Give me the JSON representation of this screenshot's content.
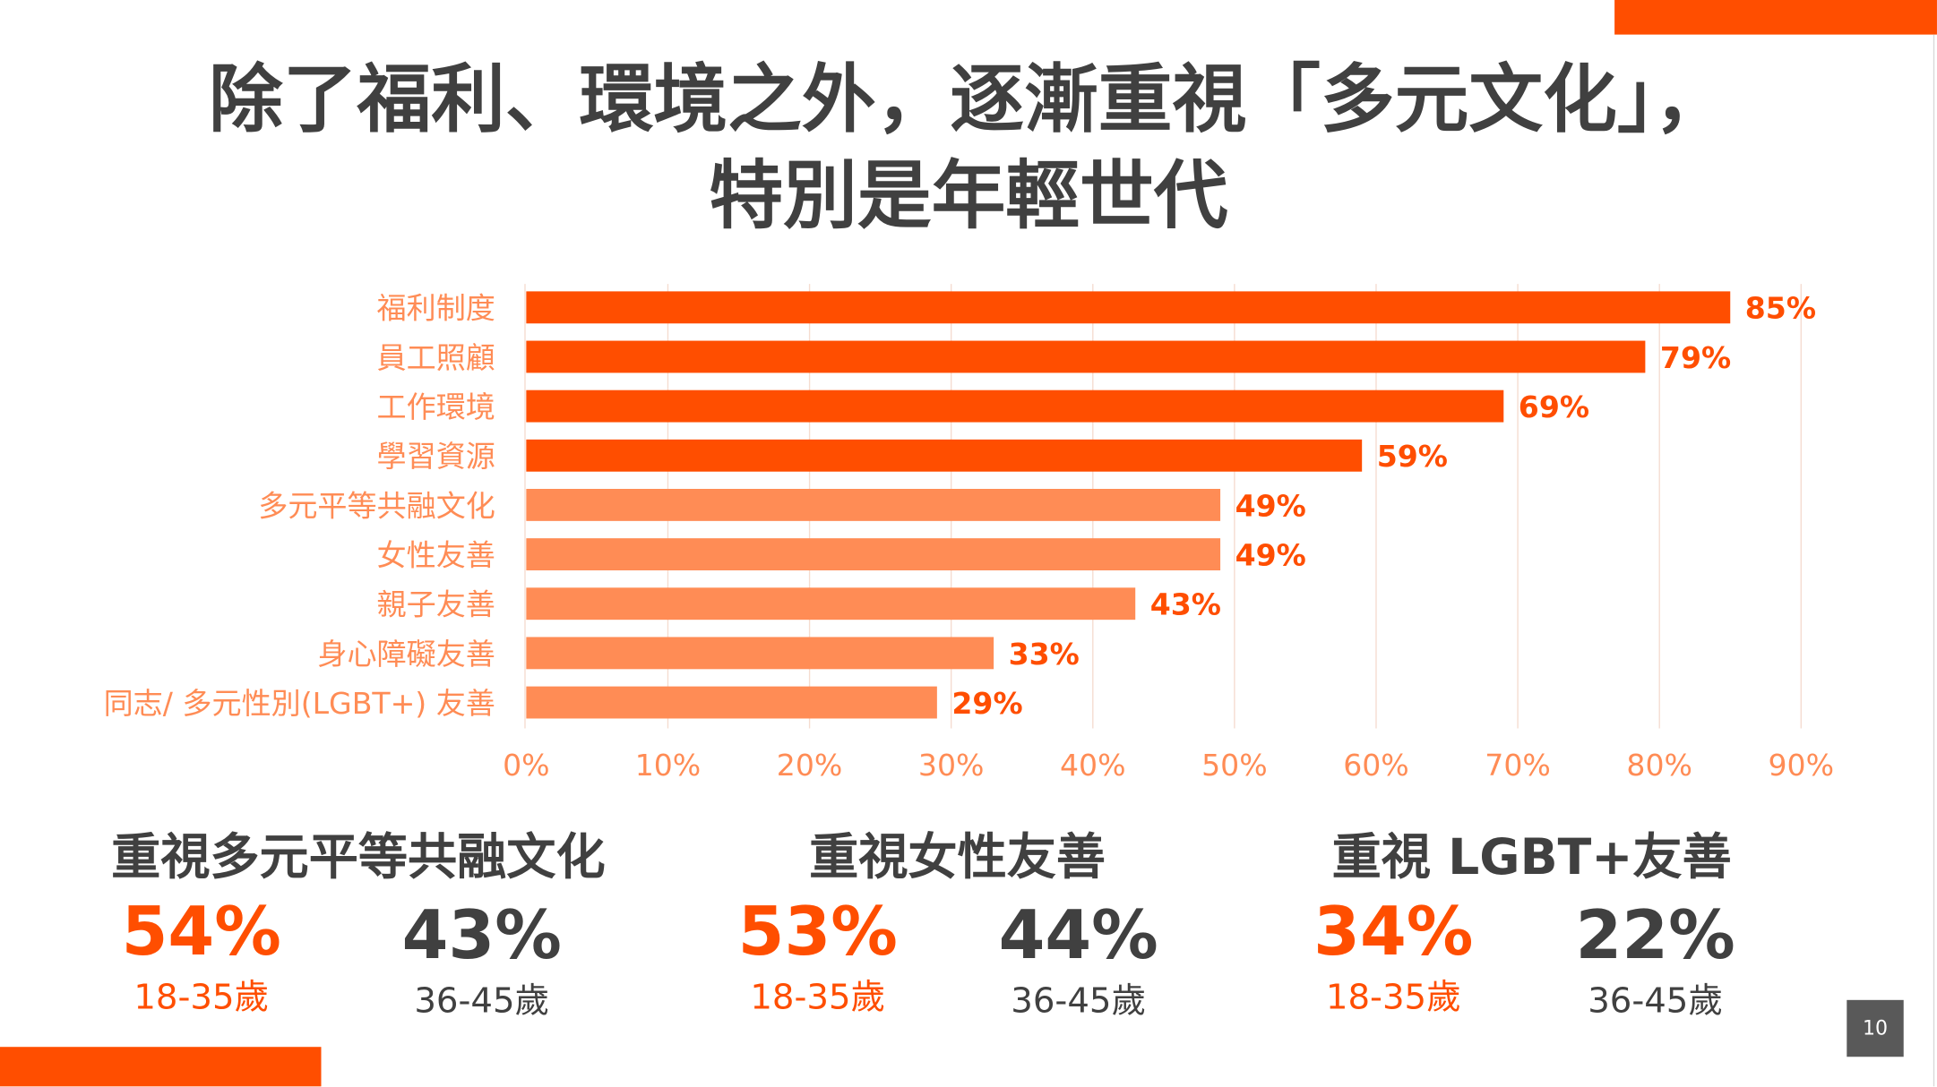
{
  "title_lines": [
    "除了福利、環境之外，逐漸重視「多元文化」，",
    "特別是年輕世代"
  ],
  "colors": {
    "primary": "#ff4e00",
    "secondary": "#ff8c55",
    "text": "#404040",
    "page_box": "#595959"
  },
  "chart_data": {
    "type": "bar",
    "orientation": "horizontal",
    "categories": [
      "福利制度",
      "員工照顧",
      "工作環境",
      "學習資源",
      "多元平等共融文化",
      "女性友善",
      "親子友善",
      "身心障礙友善",
      "同志/ 多元性別(LGBT+) 友善"
    ],
    "values": [
      85,
      79,
      69,
      59,
      49,
      49,
      43,
      33,
      29
    ],
    "value_labels": [
      "85%",
      "79%",
      "69%",
      "59%",
      "49%",
      "49%",
      "43%",
      "33%",
      "29%"
    ],
    "highlight_count": 4,
    "xlim": [
      0,
      90
    ],
    "xticks": [
      "0%",
      "10%",
      "20%",
      "30%",
      "40%",
      "50%",
      "60%",
      "70%",
      "80%",
      "90%"
    ],
    "grid": true
  },
  "stats": [
    {
      "heading": "重視多元平等共融文化",
      "young_value": "54%",
      "young_label": "18-35歲",
      "older_value": "43%",
      "older_label": "36-45歲"
    },
    {
      "heading": "重視女性友善",
      "young_value": "53%",
      "young_label": "18-35歲",
      "older_value": "44%",
      "older_label": "36-45歲"
    },
    {
      "heading": "重視 LGBT+友善",
      "young_value": "34%",
      "young_label": "18-35歲",
      "older_value": "22%",
      "older_label": "36-45歲"
    }
  ],
  "page_number": "10"
}
